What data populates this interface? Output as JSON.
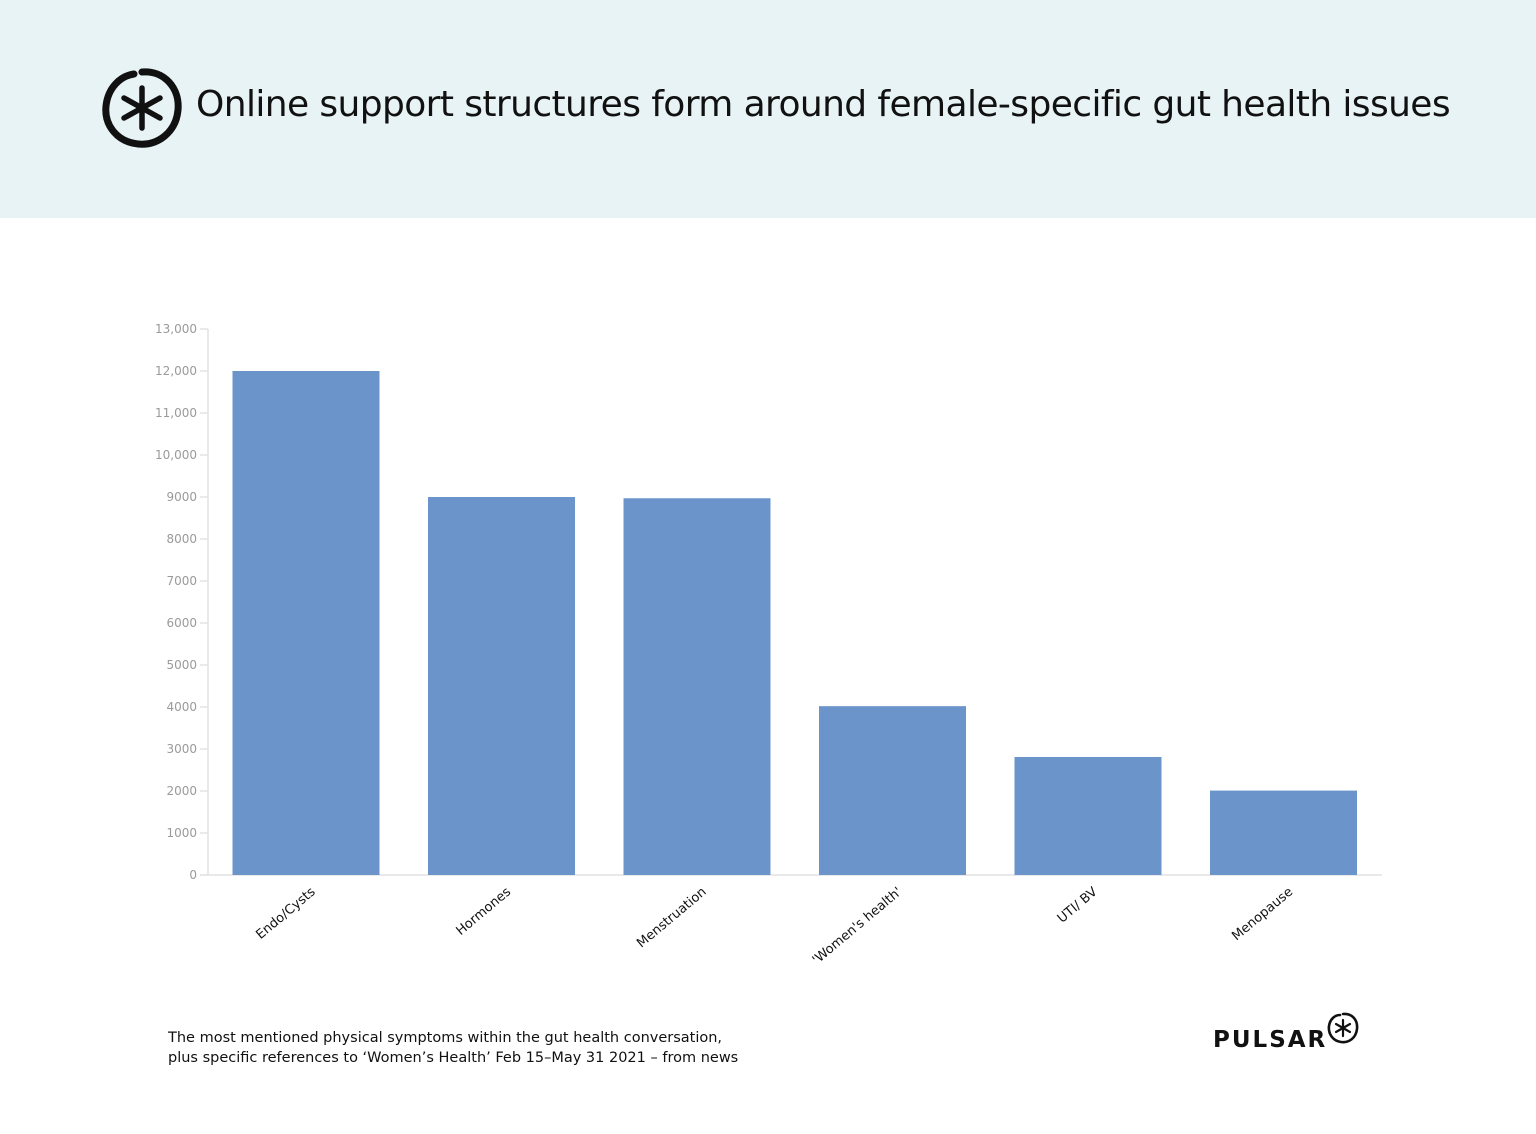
{
  "header": {
    "title": "Online support structures form around female-specific gut health issues",
    "background": "#e7f3f5",
    "logo_icon": "asterisk-circle-icon"
  },
  "chart_data": {
    "type": "bar",
    "categories": [
      "Endo/Cysts",
      "Hormones",
      "Menstruation",
      "'Women's health'",
      "UTI/ BV",
      "Menopause"
    ],
    "values": [
      12000,
      9000,
      8970,
      4020,
      2810,
      2010
    ],
    "ylim": [
      0,
      13000
    ],
    "yticks": [
      0,
      1000,
      2000,
      3000,
      4000,
      5000,
      6000,
      7000,
      8000,
      9000,
      10000,
      11000,
      12000,
      13000
    ],
    "ytick_labels": [
      "0",
      "1000",
      "2000",
      "3000",
      "4000",
      "5000",
      "6000",
      "7000",
      "8000",
      "9000",
      "10,000",
      "11,000",
      "12,000",
      "13,000"
    ],
    "bar_color": "#6b94cb",
    "grid": false,
    "legend": "none"
  },
  "caption": {
    "line1": "The most mentioned physical symptoms within the gut health conversation,",
    "line2": "plus specific references to ‘Women’s Health’ Feb 15–May 31 2021 – from news"
  },
  "brand": {
    "name": "PULSAR",
    "icon": "asterisk-circle-icon"
  }
}
